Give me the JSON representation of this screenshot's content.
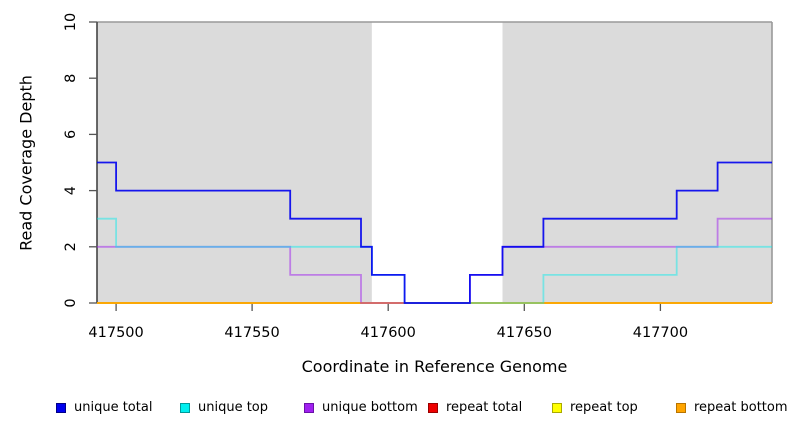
{
  "chart_data": {
    "type": "line",
    "subtype": "step",
    "title": "",
    "xlabel": "Coordinate in Reference Genome",
    "ylabel": "Read Coverage Depth",
    "xlim": [
      417493,
      417741
    ],
    "ylim": [
      0,
      10
    ],
    "x_ticks": [
      417500,
      417550,
      417600,
      417650,
      417700
    ],
    "y_ticks": [
      0,
      2,
      4,
      6,
      8,
      10
    ],
    "grid": false,
    "legend_position": "bottom",
    "band_gray": "#DBDBDB",
    "border_color": "#999999",
    "axis_color": "#444444",
    "background_bands": [
      {
        "from": 417493,
        "to": 417594,
        "color": "#DBDBDB"
      },
      {
        "from": 417594,
        "to": 417642,
        "color": "#FFFFFF"
      },
      {
        "from": 417642,
        "to": 417741,
        "color": "#DBDBDB"
      }
    ],
    "series": [
      {
        "name": "unique total",
        "color": "#0000EE",
        "opacity": 0.9,
        "steps": [
          [
            417493,
            5
          ],
          [
            417500,
            4
          ],
          [
            417564,
            3
          ],
          [
            417590,
            2
          ],
          [
            417594,
            1
          ],
          [
            417606,
            0
          ],
          [
            417630,
            1
          ],
          [
            417642,
            2
          ],
          [
            417657,
            3
          ],
          [
            417706,
            4
          ],
          [
            417721,
            5
          ]
        ]
      },
      {
        "name": "unique top",
        "color": "#00EEEE",
        "opacity": 0.45,
        "steps": [
          [
            417493,
            3
          ],
          [
            417500,
            2
          ],
          [
            417594,
            1
          ],
          [
            417606,
            0
          ],
          [
            417657,
            1
          ],
          [
            417706,
            2
          ]
        ]
      },
      {
        "name": "unique bottom",
        "color": "#A020F0",
        "opacity": 0.5,
        "steps": [
          [
            417493,
            2
          ],
          [
            417564,
            1
          ],
          [
            417590,
            0
          ],
          [
            417630,
            1
          ],
          [
            417642,
            2
          ],
          [
            417721,
            3
          ]
        ]
      },
      {
        "name": "repeat total",
        "color": "#EE0000",
        "opacity": 0.75,
        "steps": [
          [
            417493,
            0
          ]
        ]
      },
      {
        "name": "repeat top",
        "color": "#FFFF00",
        "opacity": 0.75,
        "steps": [
          [
            417493,
            0
          ]
        ]
      },
      {
        "name": "repeat bottom",
        "color": "#FFA500",
        "opacity": 0.9,
        "steps": [
          [
            417493,
            0
          ]
        ]
      }
    ],
    "draw_order": [
      3,
      4,
      5,
      2,
      1,
      0
    ]
  },
  "legend": {
    "items": [
      {
        "label": "unique total",
        "color": "#0000EE",
        "border": "#000088"
      },
      {
        "label": "unique top",
        "color": "#00EEEE",
        "border": "#009999"
      },
      {
        "label": "unique bottom",
        "color": "#A020F0",
        "border": "#6A11A8"
      },
      {
        "label": "repeat total",
        "color": "#EE0000",
        "border": "#990000"
      },
      {
        "label": "repeat top",
        "color": "#FFFF00",
        "border": "#AAAA00"
      },
      {
        "label": "repeat bottom",
        "color": "#FFA500",
        "border": "#B87400"
      }
    ]
  }
}
